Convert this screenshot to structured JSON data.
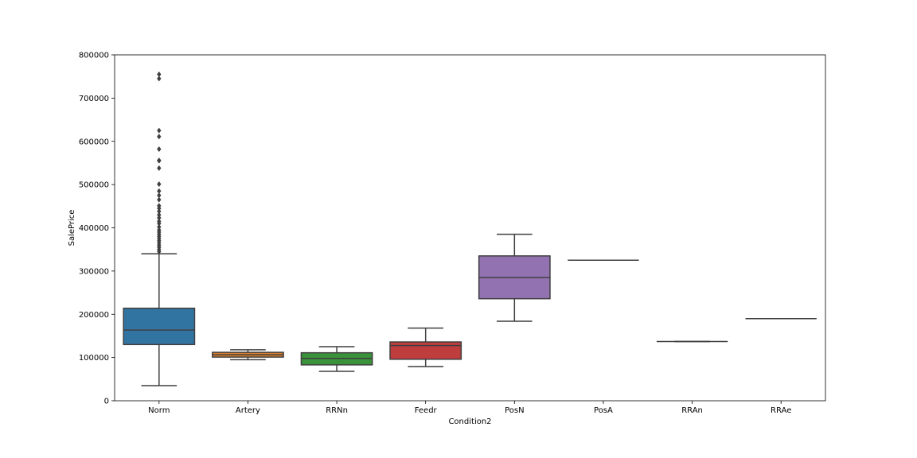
{
  "chart_data": {
    "type": "box",
    "xlabel": "Condition2",
    "ylabel": "SalePrice",
    "ylim": [
      0,
      800000
    ],
    "yticks": [
      0,
      100000,
      200000,
      300000,
      400000,
      500000,
      600000,
      700000,
      800000
    ],
    "categories": [
      "Norm",
      "Artery",
      "RRNn",
      "Feedr",
      "PosN",
      "PosA",
      "RRAn",
      "RRAe"
    ],
    "boxes": [
      {
        "category": "Norm",
        "color": "#3274a1",
        "whisker_low": 34900,
        "q1": 130000,
        "median": 163500,
        "q3": 214000,
        "whisker_high": 340000,
        "outliers": [
          345000,
          350000,
          355000,
          360000,
          365000,
          370000,
          375000,
          380000,
          385000,
          390000,
          395000,
          402000,
          410000,
          415000,
          423000,
          430000,
          438000,
          445000,
          451000,
          465000,
          475000,
          485000,
          501000,
          538000,
          555000,
          556000,
          582000,
          611000,
          625000,
          745000,
          755000
        ]
      },
      {
        "category": "Artery",
        "color": "#e1812c",
        "whisker_low": 95000,
        "q1": 101000,
        "median": 106500,
        "q3": 112000,
        "whisker_high": 118000,
        "outliers": []
      },
      {
        "category": "RRNn",
        "color": "#3a923a",
        "whisker_low": 68000,
        "q1": 83000,
        "median": 98000,
        "q3": 111000,
        "whisker_high": 125000,
        "outliers": []
      },
      {
        "category": "Feedr",
        "color": "#c03d3e",
        "whisker_low": 79000,
        "q1": 96000,
        "median": 127500,
        "q3": 136000,
        "whisker_high": 168000,
        "outliers": []
      },
      {
        "category": "PosN",
        "color": "#9372b2",
        "whisker_low": 184000,
        "q1": 236000,
        "median": 285000,
        "q3": 335000,
        "whisker_high": 385000,
        "outliers": []
      },
      {
        "category": "PosA",
        "color": "#845b53",
        "whisker_low": 325000,
        "q1": 325000,
        "median": 325000,
        "q3": 325000,
        "whisker_high": 325000,
        "outliers": []
      },
      {
        "category": "RRAn",
        "color": "#d684bd",
        "whisker_low": 136905,
        "q1": 136905,
        "median": 136905,
        "q3": 136905,
        "whisker_high": 136905,
        "outliers": []
      },
      {
        "category": "RRAe",
        "color": "#7f7f7f",
        "whisker_low": 190000,
        "q1": 190000,
        "median": 190000,
        "q3": 190000,
        "whisker_high": 190000,
        "outliers": []
      }
    ]
  }
}
